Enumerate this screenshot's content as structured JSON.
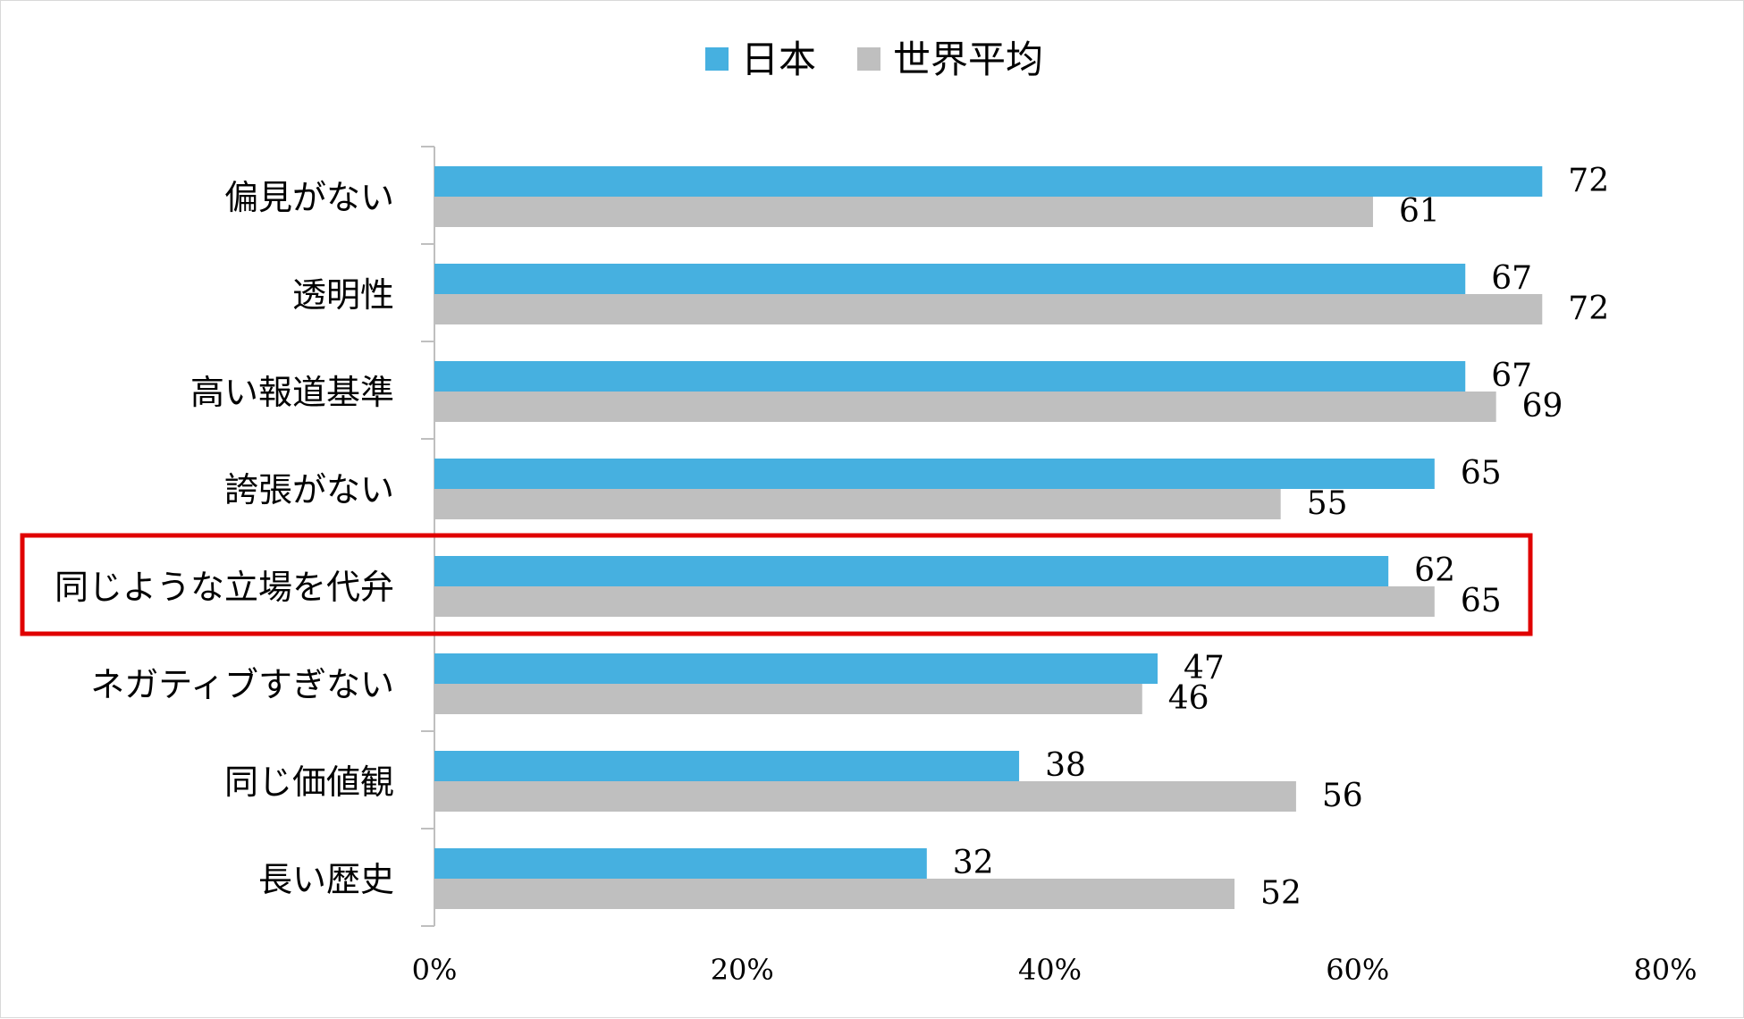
{
  "chart_data": {
    "type": "bar",
    "orientation": "horizontal",
    "categories": [
      "偏見がない",
      "透明性",
      "高い報道基準",
      "誇張がない",
      "同じような立場を代弁",
      "ネガティブすぎない",
      "同じ価値観",
      "長い歴史"
    ],
    "series": [
      {
        "name": "日本",
        "color": "#46b0e0",
        "values": [
          72,
          67,
          67,
          65,
          62,
          47,
          38,
          32
        ]
      },
      {
        "name": "世界平均",
        "color": "#bfbfbf",
        "values": [
          61,
          72,
          69,
          55,
          65,
          46,
          56,
          52
        ]
      }
    ],
    "x_ticks": [
      "0%",
      "20%",
      "40%",
      "60%",
      "80%"
    ],
    "xlim": [
      0,
      80
    ],
    "grid": false,
    "legend_position": "top",
    "highlighted_category": "同じような立場を代弁",
    "highlight_color": "#e00000"
  }
}
